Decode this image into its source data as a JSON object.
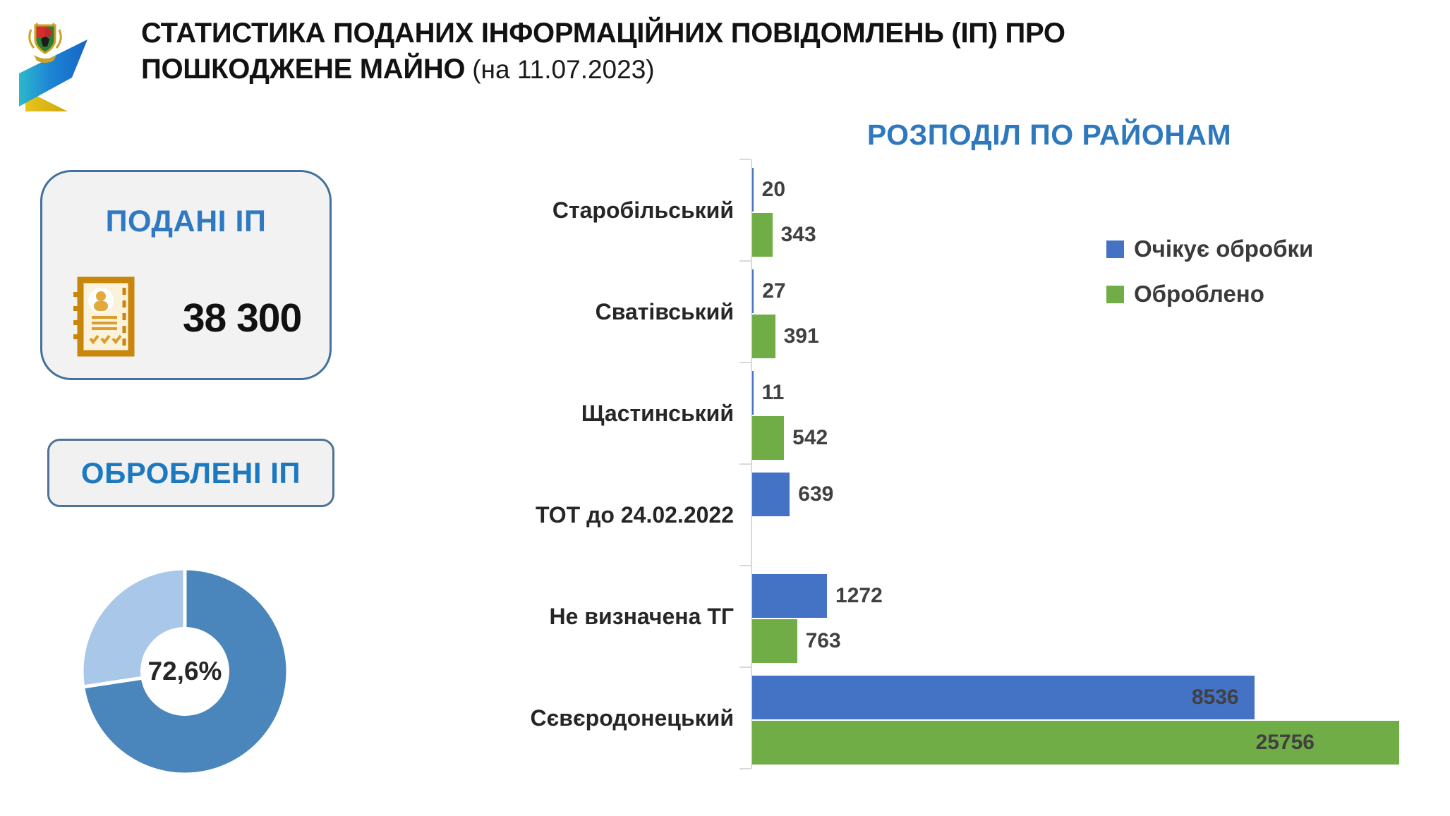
{
  "header": {
    "title_line1": "СТАТИСТИКА ПОДАНИХ ІНФОРМАЦІЙНИХ ПОВІДОМЛЕНЬ (ІП) ПРО",
    "title_line2_bold": "ПОШКОДЖЕНЕ МАЙНО",
    "title_date": "(на 11.07.2023)",
    "logo": "luhansk-region-emblem-with-blue-yellow-flag-swoosh"
  },
  "stats_cards": {
    "submitted": {
      "title": "ПОДАНІ ІП",
      "value": "38 300",
      "icon": "person-report-document-icon"
    },
    "processed": {
      "title": "ОБРОБЛЕНІ ІП"
    }
  },
  "colors": {
    "accent_blue_text": "#2E78BE",
    "series_pending": "#4472C4",
    "series_processed": "#70AD47",
    "axis": "#D9D9D9",
    "card_border": "#41719C",
    "card_fill": "#F2F2F2"
  },
  "chart_data": [
    {
      "type": "pie",
      "subtype": "donut",
      "values": [
        72.6,
        27.4
      ],
      "center_label": "72,6%",
      "colors": [
        "#4A86BC",
        "#A9C7E9"
      ],
      "start_angle_deg": 0,
      "direction": "clockwise",
      "hole_ratio": 0.43,
      "slice_gap_color": "#FFFFFF",
      "represents": "share of processed reports"
    },
    {
      "type": "bar",
      "orientation": "horizontal",
      "title": "РОЗПОДІЛ ПО РАЙОНАМ",
      "categories": [
        "Старобільський",
        "Сватівський",
        "Щастинський",
        "ТОТ до 24.02.2022",
        "Не визначена ТГ",
        "Сєвєродонецький"
      ],
      "series": [
        {
          "name": "Очікує обробки",
          "color": "#4472C4",
          "values": [
            20,
            27,
            11,
            639,
            1272,
            8536
          ]
        },
        {
          "name": "Оброблено",
          "color": "#70AD47",
          "values": [
            343,
            391,
            542,
            null,
            763,
            25756
          ]
        }
      ],
      "xlim": [
        0,
        11000
      ],
      "bars_exceeding_axis_clipped": true,
      "value_labels": "outside end; inside end for large bars",
      "legend_position": "top-right",
      "grid": false,
      "axis_color": "#D9D9D9"
    }
  ]
}
